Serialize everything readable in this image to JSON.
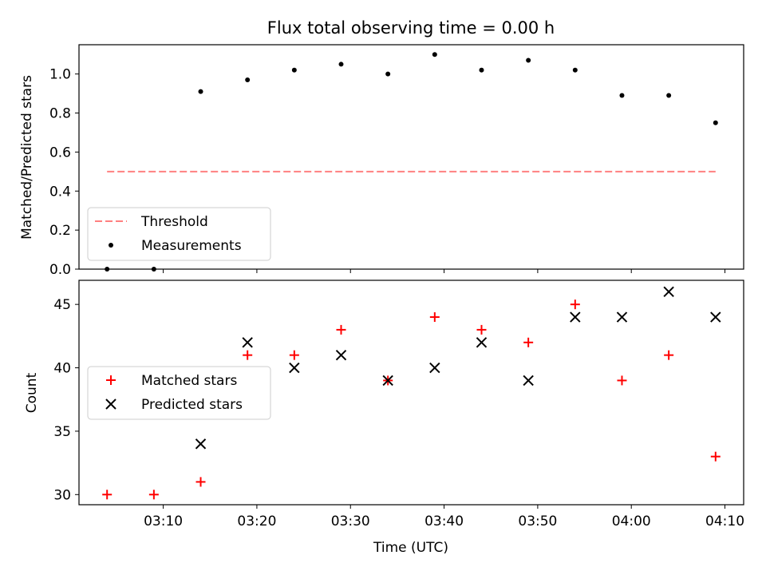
{
  "chart_data": [
    {
      "type": "scatter",
      "title": "Flux total observing time = 0.00 h",
      "ylabel": "Matched/Predicted stars",
      "xlabel": "",
      "xlim": [
        "03:01",
        "04:12"
      ],
      "ylim": [
        0,
        1.15
      ],
      "y_ticks": [
        "0.0",
        "0.2",
        "0.4",
        "0.6",
        "0.8",
        "1.0"
      ],
      "legend_position": "lower-left",
      "threshold": {
        "name": "Threshold",
        "value": 0.5,
        "x_start": "03:04",
        "x_end": "04:09",
        "color": "#ff8080"
      },
      "series": [
        {
          "name": "Measurements",
          "marker": "dot",
          "color": "#000000",
          "x": [
            "03:04",
            "03:09",
            "03:14",
            "03:19",
            "03:24",
            "03:29",
            "03:34",
            "03:39",
            "03:44",
            "03:49",
            "03:54",
            "03:59",
            "04:04",
            "04:09"
          ],
          "y": [
            0.0,
            0.0,
            0.91,
            0.97,
            1.02,
            1.05,
            1.0,
            1.1,
            1.02,
            1.07,
            1.02,
            0.89,
            0.89,
            0.75
          ]
        }
      ]
    },
    {
      "type": "scatter",
      "title": "",
      "ylabel": "Count",
      "xlabel": "Time (UTC)",
      "xlim": [
        "03:01",
        "04:12"
      ],
      "ylim": [
        29.2,
        46.9
      ],
      "y_ticks": [
        "30",
        "35",
        "40",
        "45"
      ],
      "x_ticks": [
        "03:10",
        "03:20",
        "03:30",
        "03:40",
        "03:50",
        "04:00",
        "04:10"
      ],
      "legend_position": "center-left",
      "series": [
        {
          "name": "Matched stars",
          "marker": "plus",
          "color": "#ff0000",
          "x": [
            "03:04",
            "03:09",
            "03:14",
            "03:19",
            "03:24",
            "03:29",
            "03:34",
            "03:39",
            "03:44",
            "03:49",
            "03:54",
            "03:59",
            "04:04",
            "04:09"
          ],
          "y": [
            30,
            30,
            31,
            41,
            41,
            43,
            39,
            44,
            43,
            42,
            45,
            39,
            41,
            33
          ]
        },
        {
          "name": "Predicted stars",
          "marker": "x",
          "color": "#000000",
          "x": [
            "03:14",
            "03:19",
            "03:24",
            "03:29",
            "03:34",
            "03:39",
            "03:44",
            "03:49",
            "03:54",
            "03:59",
            "04:04",
            "04:09"
          ],
          "y": [
            34,
            42,
            40,
            41,
            39,
            40,
            42,
            39,
            44,
            44,
            46,
            44
          ]
        }
      ]
    }
  ]
}
